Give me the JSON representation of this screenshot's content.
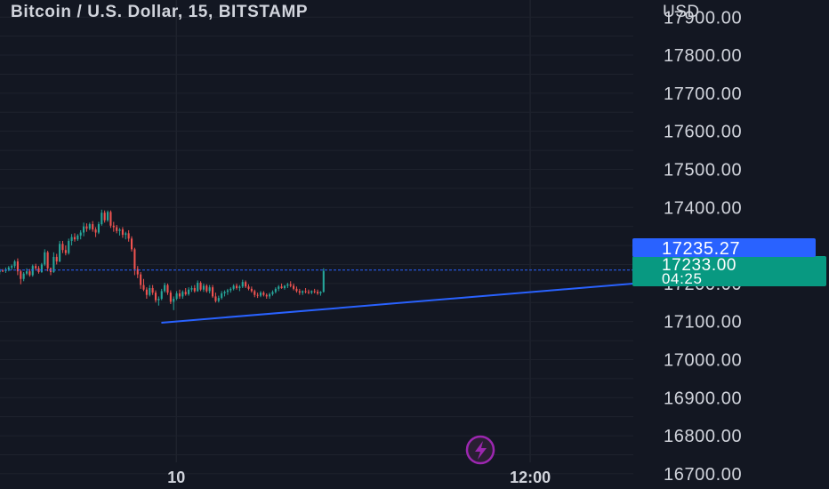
{
  "header": {
    "symbol_title": "Bitcoin / U.S. Dollar, 15, BITSTAMP",
    "currency": "USD"
  },
  "colors": {
    "background": "#131722",
    "grid": "#1e222d",
    "text": "#d1d4dc",
    "up_candle": "#26a69a",
    "down_candle": "#ef5350",
    "trendline": "#2962ff",
    "price_line": "#2962ff",
    "last_price_badge": "#089981",
    "reference_price_badge": "#2962ff",
    "lightning_badge": "#9c27b0"
  },
  "chart_data": {
    "type": "candlestick",
    "title": "Bitcoin / U.S. Dollar, 15, BITSTAMP",
    "ylabel": "USD",
    "ylim": [
      16660,
      17945
    ],
    "yticks": [
      17900,
      17800,
      17700,
      17600,
      17500,
      17400,
      17100,
      17000,
      16900,
      16800,
      16700
    ],
    "ytick_labels": [
      "17900.00",
      "17800.00",
      "17700.00",
      "17600.00",
      "17500.00",
      "17400.00",
      "17100.00",
      "17000.00",
      "16900.00",
      "16800.00",
      "16700.00"
    ],
    "xlim": [
      0,
      210
    ],
    "xticks": [
      {
        "label": "10",
        "x": 60
      },
      {
        "label": "12:00",
        "x": 178
      }
    ],
    "grid": true,
    "candles": {
      "fields": [
        "open",
        "high",
        "low",
        "close"
      ],
      "values": [
        [
          17230,
          17240,
          17224,
          17234
        ],
        [
          17234,
          17238,
          17230,
          17233
        ],
        [
          17233,
          17242,
          17228,
          17236
        ],
        [
          17236,
          17246,
          17232,
          17242
        ],
        [
          17242,
          17250,
          17236,
          17246
        ],
        [
          17246,
          17262,
          17240,
          17258
        ],
        [
          17258,
          17266,
          17222,
          17232
        ],
        [
          17232,
          17236,
          17198,
          17212
        ],
        [
          17212,
          17230,
          17206,
          17226
        ],
        [
          17226,
          17240,
          17222,
          17232
        ],
        [
          17232,
          17238,
          17218,
          17222
        ],
        [
          17222,
          17250,
          17218,
          17246
        ],
        [
          17246,
          17252,
          17234,
          17240
        ],
        [
          17240,
          17246,
          17226,
          17230
        ],
        [
          17230,
          17254,
          17228,
          17250
        ],
        [
          17250,
          17290,
          17246,
          17282
        ],
        [
          17282,
          17286,
          17232,
          17240
        ],
        [
          17240,
          17242,
          17222,
          17230
        ],
        [
          17230,
          17282,
          17228,
          17270
        ],
        [
          17270,
          17278,
          17250,
          17258
        ],
        [
          17258,
          17312,
          17256,
          17304
        ],
        [
          17304,
          17312,
          17280,
          17288
        ],
        [
          17288,
          17300,
          17274,
          17280
        ],
        [
          17280,
          17318,
          17276,
          17312
        ],
        [
          17312,
          17330,
          17300,
          17322
        ],
        [
          17322,
          17332,
          17310,
          17316
        ],
        [
          17316,
          17330,
          17312,
          17326
        ],
        [
          17326,
          17340,
          17316,
          17334
        ],
        [
          17334,
          17360,
          17324,
          17350
        ],
        [
          17350,
          17358,
          17336,
          17344
        ],
        [
          17344,
          17360,
          17340,
          17356
        ],
        [
          17356,
          17364,
          17336,
          17342
        ],
        [
          17342,
          17348,
          17322,
          17334
        ],
        [
          17334,
          17362,
          17330,
          17356
        ],
        [
          17356,
          17394,
          17352,
          17386
        ],
        [
          17386,
          17392,
          17360,
          17366
        ],
        [
          17366,
          17392,
          17362,
          17388
        ],
        [
          17388,
          17392,
          17346,
          17352
        ],
        [
          17352,
          17362,
          17336,
          17348
        ],
        [
          17348,
          17354,
          17332,
          17338
        ],
        [
          17338,
          17346,
          17326,
          17342
        ],
        [
          17342,
          17348,
          17320,
          17328
        ],
        [
          17328,
          17336,
          17316,
          17332
        ],
        [
          17332,
          17340,
          17310,
          17318
        ],
        [
          17318,
          17324,
          17284,
          17290
        ],
        [
          17290,
          17294,
          17222,
          17238
        ],
        [
          17238,
          17246,
          17214,
          17224
        ],
        [
          17224,
          17230,
          17186,
          17196
        ],
        [
          17196,
          17212,
          17180,
          17184
        ],
        [
          17184,
          17190,
          17160,
          17170
        ],
        [
          17170,
          17196,
          17166,
          17188
        ],
        [
          17188,
          17196,
          17170,
          17176
        ],
        [
          17176,
          17182,
          17150,
          17156
        ],
        [
          17156,
          17166,
          17142,
          17160
        ],
        [
          17160,
          17186,
          17156,
          17180
        ],
        [
          17180,
          17202,
          17176,
          17196
        ],
        [
          17196,
          17200,
          17170,
          17176
        ],
        [
          17176,
          17182,
          17146,
          17152
        ],
        [
          17152,
          17166,
          17130,
          17160
        ],
        [
          17160,
          17180,
          17156,
          17174
        ],
        [
          17174,
          17184,
          17160,
          17166
        ],
        [
          17166,
          17182,
          17160,
          17178
        ],
        [
          17178,
          17188,
          17168,
          17172
        ],
        [
          17172,
          17190,
          17168,
          17184
        ],
        [
          17184,
          17194,
          17178,
          17188
        ],
        [
          17188,
          17196,
          17176,
          17180
        ],
        [
          17180,
          17208,
          17178,
          17202
        ],
        [
          17202,
          17206,
          17180,
          17184
        ],
        [
          17184,
          17200,
          17178,
          17194
        ],
        [
          17194,
          17198,
          17176,
          17180
        ],
        [
          17180,
          17196,
          17174,
          17190
        ],
        [
          17190,
          17196,
          17162,
          17166
        ],
        [
          17166,
          17176,
          17150,
          17154
        ],
        [
          17154,
          17168,
          17150,
          17162
        ],
        [
          17162,
          17180,
          17158,
          17174
        ],
        [
          17174,
          17182,
          17166,
          17178
        ],
        [
          17178,
          17186,
          17170,
          17182
        ],
        [
          17182,
          17190,
          17176,
          17186
        ],
        [
          17186,
          17198,
          17182,
          17194
        ],
        [
          17194,
          17200,
          17184,
          17188
        ],
        [
          17188,
          17196,
          17180,
          17192
        ],
        [
          17192,
          17210,
          17188,
          17204
        ],
        [
          17204,
          17208,
          17188,
          17192
        ],
        [
          17192,
          17198,
          17182,
          17186
        ],
        [
          17186,
          17192,
          17176,
          17180
        ],
        [
          17180,
          17184,
          17164,
          17170
        ],
        [
          17170,
          17176,
          17162,
          17168
        ],
        [
          17168,
          17180,
          17164,
          17176
        ],
        [
          17176,
          17180,
          17166,
          17170
        ],
        [
          17170,
          17174,
          17160,
          17166
        ],
        [
          17166,
          17176,
          17160,
          17172
        ],
        [
          17172,
          17182,
          17168,
          17178
        ],
        [
          17178,
          17190,
          17174,
          17186
        ],
        [
          17186,
          17196,
          17180,
          17192
        ],
        [
          17192,
          17200,
          17186,
          17188
        ],
        [
          17188,
          17196,
          17184,
          17194
        ],
        [
          17194,
          17202,
          17188,
          17198
        ],
        [
          17198,
          17206,
          17190,
          17194
        ],
        [
          17194,
          17200,
          17182,
          17186
        ],
        [
          17186,
          17192,
          17176,
          17180
        ],
        [
          17180,
          17186,
          17170,
          17176
        ],
        [
          17176,
          17182,
          17170,
          17180
        ],
        [
          17180,
          17188,
          17174,
          17178
        ],
        [
          17178,
          17184,
          17172,
          17176
        ],
        [
          17176,
          17182,
          17172,
          17180
        ],
        [
          17180,
          17186,
          17174,
          17178
        ],
        [
          17178,
          17184,
          17170,
          17174
        ],
        [
          17174,
          17180,
          17168,
          17178
        ],
        [
          17178,
          17240,
          17176,
          17233
        ]
      ]
    },
    "trendlines": [
      {
        "name": "ascending support",
        "from": {
          "x": 55,
          "y": 17097
        },
        "to": {
          "x": 254,
          "y": 17227
        }
      }
    ],
    "price_lines": [
      {
        "value": 17235.27,
        "style": "dashed"
      }
    ],
    "price_labels": [
      {
        "value": 17235.27,
        "text": "17235.27",
        "kind": "reference"
      },
      {
        "value": 17233.0,
        "text": "17233.00",
        "countdown": "04:25",
        "kind": "last"
      }
    ],
    "partially_hidden_tick": "17200.00"
  }
}
